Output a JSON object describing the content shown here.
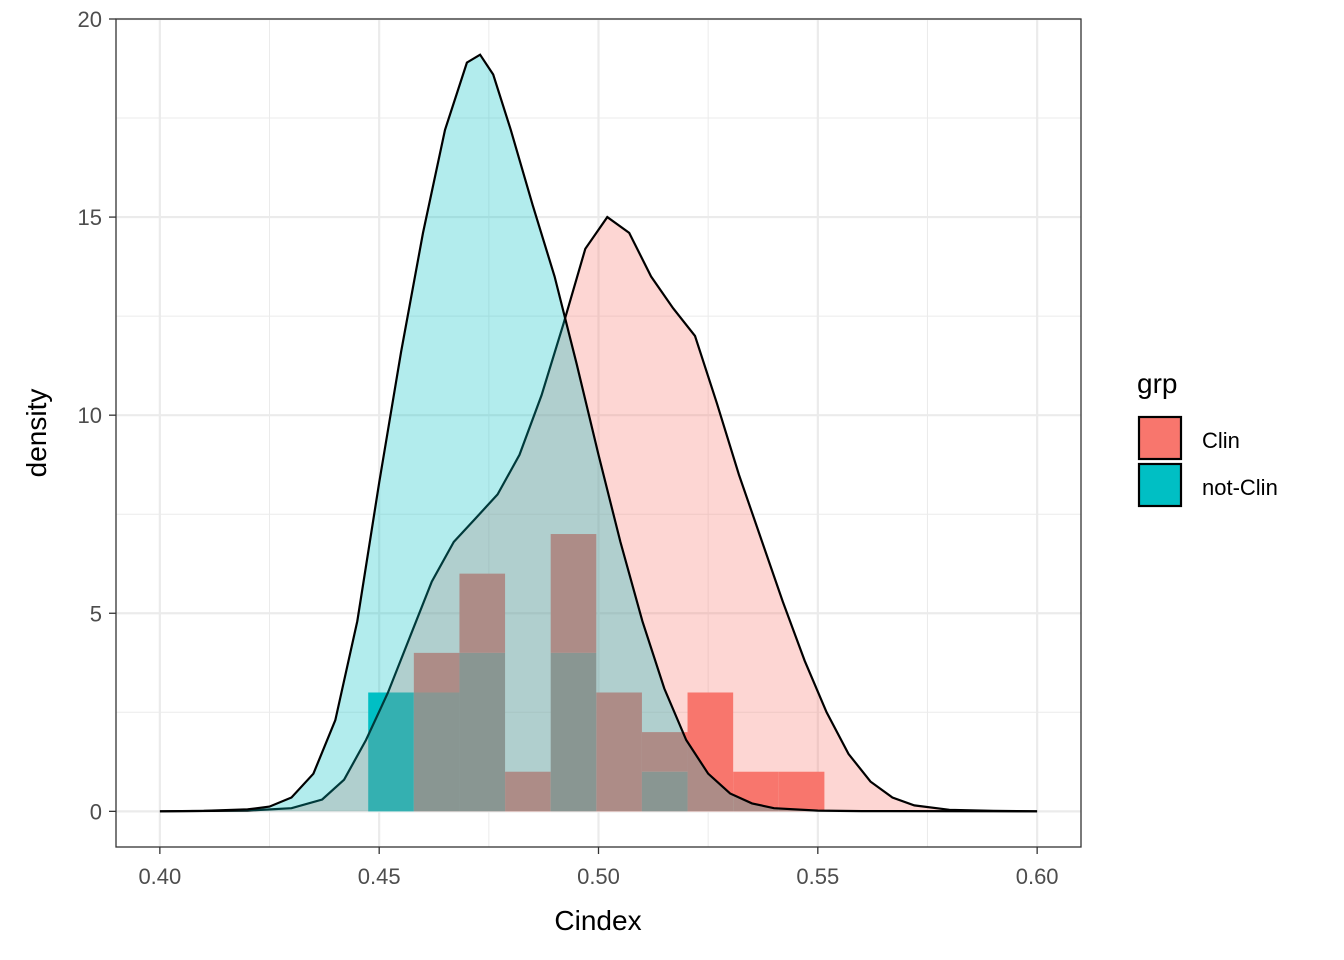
{
  "chart_data": {
    "type": "histogram+density",
    "xlabel": "Cindex",
    "ylabel": "density",
    "xlim": [
      0.39,
      0.61
    ],
    "ylim": [
      -0.9,
      20.0
    ],
    "x_ticks": [
      "0.40",
      "0.45",
      "0.50",
      "0.55",
      "0.60"
    ],
    "x_tick_values": [
      0.4,
      0.45,
      0.5,
      0.55,
      0.6
    ],
    "y_ticks": [
      "0",
      "5",
      "10",
      "15",
      "20"
    ],
    "y_tick_values": [
      0,
      5,
      10,
      15,
      20
    ],
    "grid": true,
    "legend": {
      "title": "grp",
      "placement": "right",
      "entries": [
        {
          "label": "Clin",
          "color": "#F8766D"
        },
        {
          "label": "not-Clin",
          "color": "#00BFC4"
        }
      ]
    },
    "histogram": {
      "overlay_color": "#AE8B85",
      "bin_edges": [
        0.4475,
        0.4579,
        0.4683,
        0.4787,
        0.4891,
        0.4995,
        0.5099,
        0.5203,
        0.5307,
        0.5411,
        0.5515
      ],
      "series": [
        {
          "name": "Clin",
          "color": "#F8766D",
          "counts": [
            0,
            4,
            6,
            1,
            7,
            3,
            2,
            3,
            1,
            1
          ]
        },
        {
          "name": "not-Clin",
          "color": "#00BFC4",
          "counts": [
            3,
            3,
            4,
            0,
            4,
            0,
            1,
            0,
            0,
            0
          ]
        }
      ]
    },
    "density": [
      {
        "name": "Clin",
        "fill": "#F8766D",
        "fill_opacity": 0.3,
        "points": [
          [
            0.4,
            0
          ],
          [
            0.42,
            0.02
          ],
          [
            0.43,
            0.08
          ],
          [
            0.437,
            0.3
          ],
          [
            0.442,
            0.8
          ],
          [
            0.447,
            1.8
          ],
          [
            0.452,
            3.0
          ],
          [
            0.457,
            4.4
          ],
          [
            0.462,
            5.8
          ],
          [
            0.467,
            6.8
          ],
          [
            0.472,
            7.4
          ],
          [
            0.477,
            8.0
          ],
          [
            0.482,
            9.0
          ],
          [
            0.487,
            10.5
          ],
          [
            0.492,
            12.3
          ],
          [
            0.497,
            14.2
          ],
          [
            0.502,
            15.0
          ],
          [
            0.507,
            14.6
          ],
          [
            0.512,
            13.5
          ],
          [
            0.517,
            12.7
          ],
          [
            0.522,
            12.0
          ],
          [
            0.527,
            10.3
          ],
          [
            0.532,
            8.5
          ],
          [
            0.537,
            6.9
          ],
          [
            0.542,
            5.3
          ],
          [
            0.547,
            3.8
          ],
          [
            0.552,
            2.5
          ],
          [
            0.557,
            1.45
          ],
          [
            0.562,
            0.75
          ],
          [
            0.567,
            0.35
          ],
          [
            0.572,
            0.15
          ],
          [
            0.58,
            0.04
          ],
          [
            0.59,
            0.01
          ],
          [
            0.6,
            0
          ]
        ]
      },
      {
        "name": "not-Clin",
        "fill": "#00BFC4",
        "fill_opacity": 0.3,
        "points": [
          [
            0.4,
            0
          ],
          [
            0.41,
            0.01
          ],
          [
            0.42,
            0.05
          ],
          [
            0.425,
            0.12
          ],
          [
            0.43,
            0.35
          ],
          [
            0.435,
            0.95
          ],
          [
            0.44,
            2.3
          ],
          [
            0.445,
            4.8
          ],
          [
            0.45,
            8.3
          ],
          [
            0.455,
            11.6
          ],
          [
            0.46,
            14.6
          ],
          [
            0.465,
            17.2
          ],
          [
            0.47,
            18.9
          ],
          [
            0.473,
            19.1
          ],
          [
            0.476,
            18.6
          ],
          [
            0.48,
            17.2
          ],
          [
            0.485,
            15.3
          ],
          [
            0.49,
            13.5
          ],
          [
            0.495,
            11.3
          ],
          [
            0.5,
            9.0
          ],
          [
            0.505,
            6.8
          ],
          [
            0.51,
            4.8
          ],
          [
            0.515,
            3.1
          ],
          [
            0.52,
            1.8
          ],
          [
            0.525,
            0.95
          ],
          [
            0.53,
            0.45
          ],
          [
            0.535,
            0.2
          ],
          [
            0.54,
            0.08
          ],
          [
            0.55,
            0.02
          ],
          [
            0.56,
            0.005
          ],
          [
            0.6,
            0
          ]
        ]
      }
    ]
  }
}
